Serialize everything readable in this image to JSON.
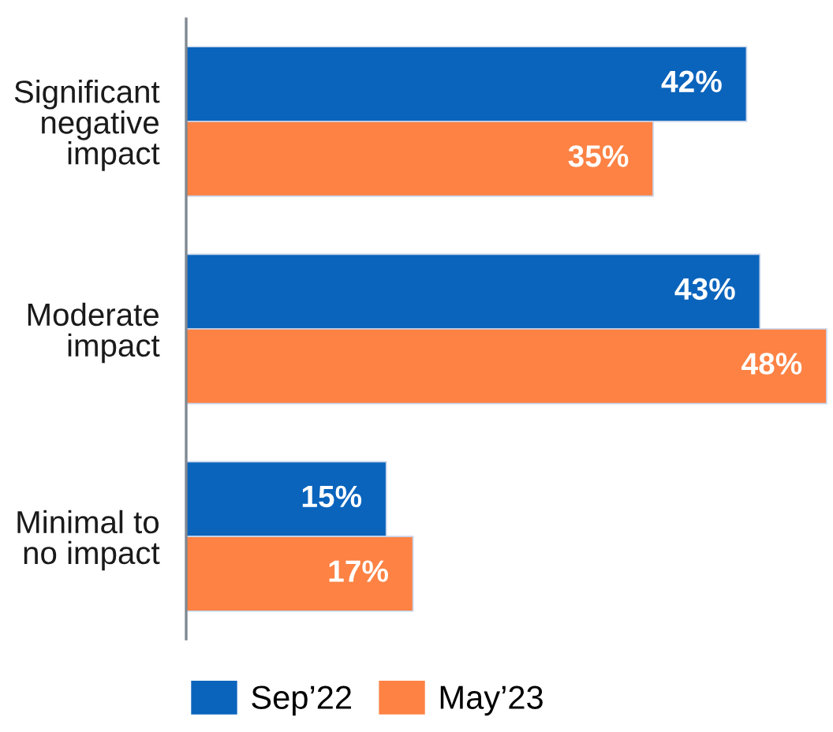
{
  "chart_data": {
    "type": "bar",
    "orientation": "horizontal",
    "categories": [
      "Significant\nnegative\nimpact",
      "Moderate\nimpact",
      "Minimal to\nno impact"
    ],
    "series": [
      {
        "name": "Sep’22",
        "color": "#0a64bc",
        "values": [
          42,
          43,
          15
        ],
        "value_labels": [
          "42%",
          "43%",
          "15%"
        ]
      },
      {
        "name": "May’23",
        "color": "#fd8244",
        "values": [
          35,
          48,
          17
        ],
        "value_labels": [
          "35%",
          "48%",
          "17%"
        ]
      }
    ],
    "legend": "bottom"
  }
}
